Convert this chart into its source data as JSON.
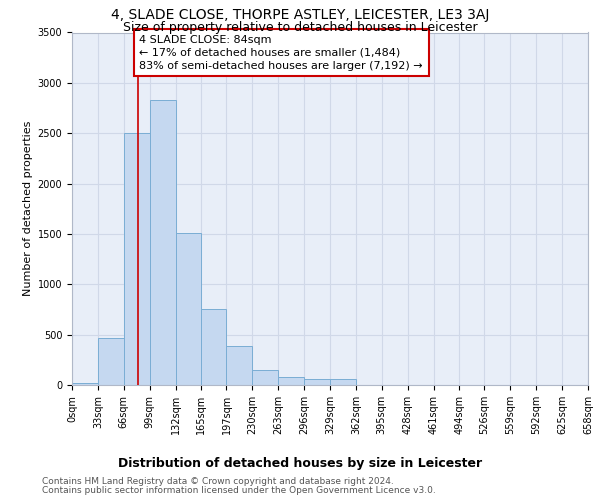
{
  "title": "4, SLADE CLOSE, THORPE ASTLEY, LEICESTER, LE3 3AJ",
  "subtitle": "Size of property relative to detached houses in Leicester",
  "xlabel": "Distribution of detached houses by size in Leicester",
  "ylabel": "Number of detached properties",
  "bar_color": "#c5d8f0",
  "bar_edge_color": "#7aadd4",
  "background_color": "#e8eef8",
  "annotation_text": "4 SLADE CLOSE: 84sqm\n← 17% of detached houses are smaller (1,484)\n83% of semi-detached houses are larger (7,192) →",
  "vline_x": 84,
  "vline_color": "#cc0000",
  "bin_edges": [
    0,
    33,
    66,
    99,
    132,
    165,
    197,
    230,
    263,
    296,
    329,
    362,
    395,
    428,
    461,
    494,
    526,
    559,
    592,
    625,
    658
  ],
  "categories": [
    "0sqm",
    "33sqm",
    "66sqm",
    "99sqm",
    "132sqm",
    "165sqm",
    "197sqm",
    "230sqm",
    "263sqm",
    "296sqm",
    "329sqm",
    "362sqm",
    "395sqm",
    "428sqm",
    "461sqm",
    "494sqm",
    "526sqm",
    "559sqm",
    "592sqm",
    "625sqm",
    "658sqm"
  ],
  "values": [
    20,
    470,
    2500,
    2830,
    1510,
    750,
    390,
    145,
    75,
    60,
    55,
    0,
    0,
    0,
    0,
    0,
    0,
    0,
    0,
    0,
    0
  ],
  "ylim": [
    0,
    3500
  ],
  "yticks": [
    0,
    500,
    1000,
    1500,
    2000,
    2500,
    3000,
    3500
  ],
  "footer_line1": "Contains HM Land Registry data © Crown copyright and database right 2024.",
  "footer_line2": "Contains public sector information licensed under the Open Government Licence v3.0.",
  "title_fontsize": 10,
  "subtitle_fontsize": 9,
  "xlabel_fontsize": 9,
  "ylabel_fontsize": 8,
  "tick_fontsize": 7,
  "annotation_fontsize": 8,
  "footer_fontsize": 6.5,
  "grid_color": "#d0d8e8"
}
